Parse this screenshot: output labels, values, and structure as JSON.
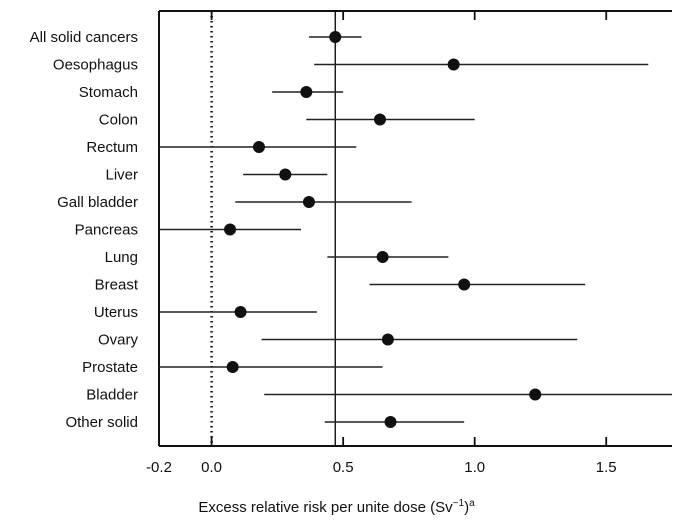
{
  "chart_data": {
    "type": "scatter",
    "subtype": "forest-plot",
    "title": "",
    "xlabel": "Excess relative risk per unite dose (Sv",
    "xlabel_superscript": "−1",
    "xlabel_suffix": ")",
    "xlabel_footnote": "a",
    "ylabel": "",
    "xlim": [
      -0.2,
      1.75
    ],
    "xticks": [
      -0.2,
      0.0,
      0.5,
      1.0,
      1.5
    ],
    "xtick_labels": [
      "-0.2",
      "0.0",
      "0.5",
      "1.0",
      "1.5"
    ],
    "reference_lines": [
      {
        "x": 0.0,
        "style": "dotted"
      },
      {
        "x": 0.47,
        "style": "solid"
      }
    ],
    "grid": false,
    "categories": [
      "All solid cancers",
      "Oesophagus",
      "Stomach",
      "Colon",
      "Rectum",
      "Liver",
      "Gall bladder",
      "Pancreas",
      "Lung",
      "Breast",
      "Uterus",
      "Ovary",
      "Prostate",
      "Bladder",
      "Other solid"
    ],
    "estimates": [
      0.47,
      0.92,
      0.36,
      0.64,
      0.18,
      0.28,
      0.37,
      0.07,
      0.65,
      0.96,
      0.11,
      0.67,
      0.08,
      1.23,
      0.68
    ],
    "lower": [
      0.37,
      0.39,
      0.23,
      0.36,
      -0.2,
      0.12,
      0.09,
      -0.2,
      0.44,
      0.6,
      -0.2,
      0.19,
      -0.2,
      0.2,
      0.43
    ],
    "upper": [
      0.57,
      1.66,
      0.5,
      1.0,
      0.55,
      0.44,
      0.76,
      0.34,
      0.9,
      1.42,
      0.4,
      1.39,
      0.65,
      1.75,
      0.96
    ]
  }
}
